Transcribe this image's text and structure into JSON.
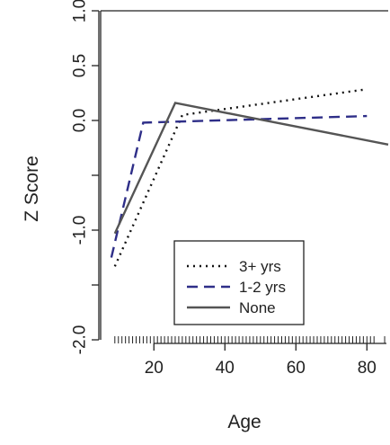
{
  "chart_data": {
    "type": "line",
    "title": "",
    "xlabel": "Age",
    "ylabel": "Z Score",
    "xlim": [
      5,
      86
    ],
    "ylim": [
      -2.0,
      1.0
    ],
    "x_ticks": [
      20,
      40,
      60,
      80
    ],
    "x_tick_labels": [
      "20",
      "40",
      "60",
      "80"
    ],
    "y_ticks": [
      1.0,
      0.5,
      0.0,
      -0.5,
      -1.0,
      -1.5,
      -2.0
    ],
    "y_tick_labels": [
      "1.0",
      "0.5",
      "0.0",
      "",
      "-1.0",
      "",
      "-2.0"
    ],
    "rug": true,
    "legend_position": "bottom-center",
    "series": [
      {
        "name": "3+ yrs",
        "color": "#111111",
        "dash": "dotted",
        "x": [
          9,
          28,
          79
        ],
        "y": [
          -1.33,
          0.05,
          0.28
        ]
      },
      {
        "name": "1-2 yrs",
        "color": "#2e2e88",
        "dash": "dashed",
        "x": [
          8,
          17,
          80
        ],
        "y": [
          -1.25,
          -0.02,
          0.04
        ]
      },
      {
        "name": "None",
        "color": "#555555",
        "dash": "solid",
        "x": [
          9,
          26,
          86
        ],
        "y": [
          -1.03,
          0.16,
          -0.22
        ]
      }
    ]
  }
}
